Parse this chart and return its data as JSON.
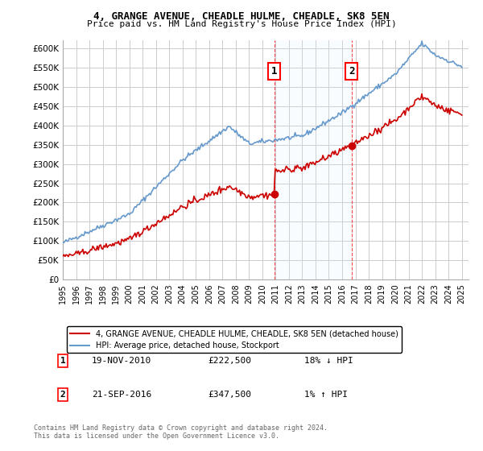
{
  "title": "4, GRANGE AVENUE, CHEADLE HULME, CHEADLE, SK8 5EN",
  "subtitle": "Price paid vs. HM Land Registry's House Price Index (HPI)",
  "background_color": "#ffffff",
  "plot_bg_color": "#ffffff",
  "grid_color": "#cccccc",
  "ylim": [
    0,
    620000
  ],
  "yticks": [
    0,
    50000,
    100000,
    150000,
    200000,
    250000,
    300000,
    350000,
    400000,
    450000,
    500000,
    550000,
    600000
  ],
  "xlim_start": 1995,
  "xlim_end": 2025.5,
  "sale1_x": 2010.89,
  "sale1_y": 222500,
  "sale2_x": 2016.72,
  "sale2_y": 347500,
  "sale1_label": "1",
  "sale2_label": "2",
  "property_color": "#cc0000",
  "hpi_color": "#6699cc",
  "shade_color": "#ddeeff",
  "legend_property": "4, GRANGE AVENUE, CHEADLE HULME, CHEADLE, SK8 5EN (detached house)",
  "legend_hpi": "HPI: Average price, detached house, Stockport",
  "annotation1_date": "19-NOV-2010",
  "annotation1_price": "£222,500",
  "annotation1_hpi": "18% ↓ HPI",
  "annotation2_date": "21-SEP-2016",
  "annotation2_price": "£347,500",
  "annotation2_hpi": "1% ↑ HPI",
  "footnote": "Contains HM Land Registry data © Crown copyright and database right 2024.\nThis data is licensed under the Open Government Licence v3.0."
}
